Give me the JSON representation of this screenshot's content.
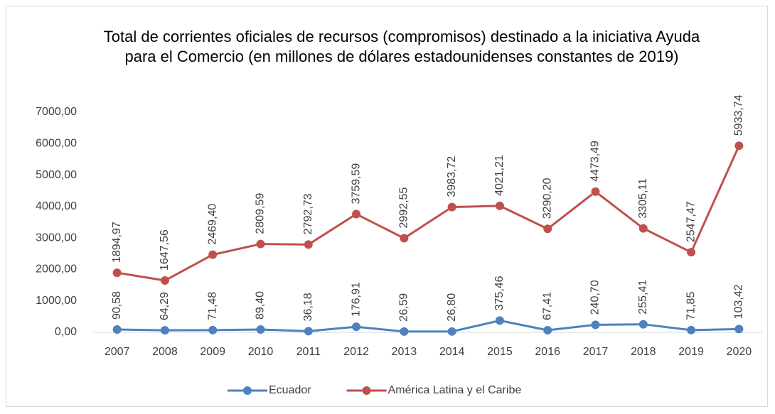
{
  "chart_data": {
    "type": "line",
    "title": "Total de corrientes oficiales de recursos (compromisos) destinado a la iniciativa Ayuda para el Comercio (en millones de dólares estadounidenses constantes de 2019)",
    "categories": [
      "2007",
      "2008",
      "2009",
      "2010",
      "2011",
      "2012",
      "2013",
      "2014",
      "2015",
      "2016",
      "2017",
      "2018",
      "2019",
      "2020"
    ],
    "series": [
      {
        "name": "Ecuador",
        "color": "#4f81bd",
        "values": [
          90.58,
          64.29,
          71.48,
          89.4,
          36.18,
          176.91,
          26.59,
          26.8,
          375.46,
          67.41,
          240.7,
          255.41,
          71.85,
          103.42
        ],
        "value_labels": [
          "90,58",
          "64,29",
          "71,48",
          "89,40",
          "36,18",
          "176,91",
          "26,59",
          "26,80",
          "375,46",
          "67,41",
          "240,70",
          "255,41",
          "71,85",
          "103,42"
        ]
      },
      {
        "name": "América Latina y el Caribe",
        "color": "#c0504d",
        "values": [
          1894.97,
          1647.56,
          2469.4,
          2809.59,
          2792.73,
          3759.59,
          2992.55,
          3983.72,
          4021.21,
          3290.2,
          4473.49,
          3305.11,
          2547.47,
          5933.74
        ],
        "value_labels": [
          "1894,97",
          "1647,56",
          "2469,40",
          "2809,59",
          "2792,73",
          "3759,59",
          "2992,55",
          "3983,72",
          "4021,21",
          "3290,20",
          "4473,49",
          "3305,11",
          "2547,47",
          "5933,74"
        ]
      }
    ],
    "ylim": [
      0,
      7000
    ],
    "yticks": [
      {
        "value": 0,
        "label": "0,00"
      },
      {
        "value": 1000,
        "label": "1000,00"
      },
      {
        "value": 2000,
        "label": "2000,00"
      },
      {
        "value": 3000,
        "label": "3000,00"
      },
      {
        "value": 4000,
        "label": "4000,00"
      },
      {
        "value": 5000,
        "label": "5000,00"
      },
      {
        "value": 6000,
        "label": "6000,00"
      },
      {
        "value": 7000,
        "label": "7000,00"
      }
    ],
    "grid": false,
    "legend": "bottom"
  }
}
